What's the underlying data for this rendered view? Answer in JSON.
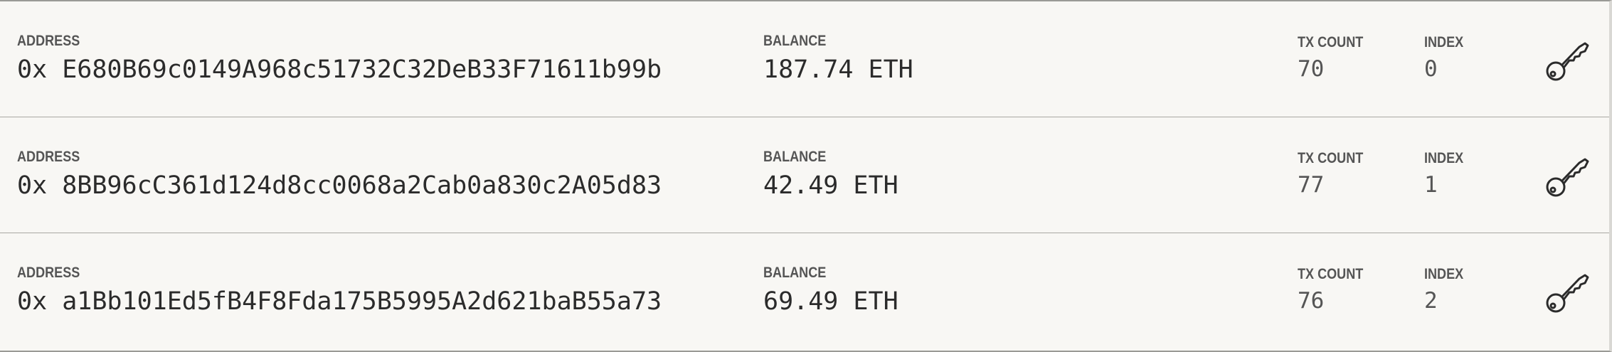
{
  "labels": {
    "address": "ADDRESS",
    "balance": "BALANCE",
    "tx_count": "TX COUNT",
    "index": "INDEX"
  },
  "accounts": [
    {
      "address": "0x E680B69c0149A968c51732C32DeB33F71611b99b",
      "balance": "187.74 ETH",
      "tx_count": "70",
      "index": "0",
      "action_icon": "key-icon"
    },
    {
      "address": "0x 8BB96cC361d124d8cc0068a2Cab0a830c2A05d83",
      "balance": "42.49 ETH",
      "tx_count": "77",
      "index": "1",
      "action_icon": "key-icon"
    },
    {
      "address": "0x a1Bb101Ed5fB4F8Fda175B5995A2d621baB55a73",
      "balance": "69.49 ETH",
      "tx_count": "76",
      "index": "2",
      "action_icon": "key-icon"
    }
  ],
  "colors": {
    "background": "#f8f7f4",
    "text": "#2b2b2b",
    "label": "#555555",
    "divider": "#a9a8a3"
  }
}
